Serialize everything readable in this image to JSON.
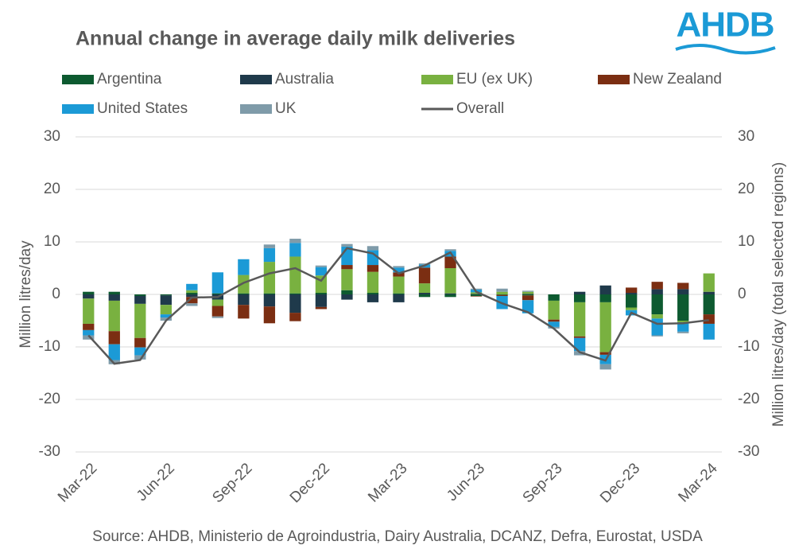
{
  "chart_data": {
    "type": "bar",
    "stacked": true,
    "title": "Annual change in average daily milk deliveries",
    "logo": "AHDB",
    "source": "Source: AHDB, Ministerio de Agroindustria, Dairy Australia, DCANZ, Defra, Eurostat, USDA",
    "y_label": "Million litres/day",
    "y2_label": "Million litres/day (total selected regions)",
    "categories": [
      "Mar-22",
      null,
      null,
      "Jun-22",
      null,
      null,
      "Sep-22",
      null,
      null,
      "Dec-22",
      null,
      null,
      "Mar-23",
      null,
      null,
      "Jun-23",
      null,
      null,
      "Sep-23",
      null,
      null,
      "Dec-23",
      null,
      null,
      "Mar-24"
    ],
    "ylim": [
      -30,
      30
    ],
    "yticks": [
      -30,
      -20,
      -10,
      0,
      10,
      20,
      30
    ],
    "y2lim": [
      -30,
      30
    ],
    "y2ticks": [
      -30,
      -20,
      -10,
      0,
      10,
      20,
      30
    ],
    "grid": true,
    "legend": "top",
    "series": [
      {
        "name": "Argentina",
        "color": "#0d5a30",
        "values": [
          0.5,
          0.5,
          -0.3,
          -0.2,
          0.3,
          0.2,
          0.2,
          0.2,
          0.2,
          0.3,
          0.8,
          0.3,
          0.2,
          -0.5,
          -0.5,
          -0.3,
          -0.1,
          -0.2,
          -1.2,
          -1.5,
          -1.5,
          -2.5,
          -3.8,
          -5.0,
          -3.8
        ]
      },
      {
        "name": "Australia",
        "color": "#1f3a4b",
        "values": [
          -0.8,
          -1.2,
          -1.5,
          -1.8,
          -0.5,
          -1.0,
          -2.0,
          -2.3,
          -3.5,
          -2.4,
          -1.0,
          -1.5,
          -1.5,
          0.3,
          0.2,
          0.1,
          0,
          0.1,
          0,
          0.5,
          1.7,
          0.3,
          1.0,
          1.0,
          0.5
        ]
      },
      {
        "name": "EU (ex UK)",
        "color": "#79b140",
        "values": [
          -4.8,
          -5.8,
          -6.5,
          -1.8,
          0.5,
          -1.2,
          3.5,
          6.0,
          7.0,
          3.3,
          4.0,
          4.0,
          3.2,
          1.8,
          4.8,
          0.3,
          0.5,
          0.4,
          -3.6,
          -6.5,
          -9.5,
          -0.5,
          -0.8,
          -0.3,
          3.5
        ]
      },
      {
        "name": "New Zealand",
        "color": "#7b2e12",
        "values": [
          -1.2,
          -2.5,
          -1.8,
          0,
          -1.2,
          -2.0,
          -2.6,
          -3.2,
          -1.6,
          -0.4,
          0.8,
          1.3,
          0.8,
          3.0,
          2.2,
          -0.1,
          -0.2,
          -0.9,
          -0.4,
          -0.3,
          -0.5,
          1.0,
          1.4,
          1.2,
          -1.8
        ]
      },
      {
        "name": "United States",
        "color": "#1b9ad6",
        "values": [
          -1.0,
          -3.0,
          -1.5,
          -0.6,
          1.2,
          4.0,
          3.0,
          2.6,
          2.6,
          1.6,
          3.5,
          2.8,
          0.9,
          0.6,
          1.1,
          0.5,
          -2.5,
          -2.5,
          -1.0,
          -2.5,
          -1.8,
          -1.0,
          -3.2,
          -1.8,
          -3.0
        ]
      },
      {
        "name": "UK",
        "color": "#7f9ba9",
        "values": [
          -0.8,
          -0.8,
          -0.8,
          -0.6,
          -0.5,
          -0.3,
          0,
          0.7,
          0.8,
          0.3,
          0.5,
          0.8,
          0.3,
          0.2,
          0.3,
          0.2,
          0.6,
          0.2,
          -0.3,
          -0.8,
          -1.0,
          0,
          -0.2,
          -0.3,
          0
        ]
      },
      {
        "name": "Overall",
        "color": "#595959",
        "type": "line",
        "axis": "y2",
        "values": [
          -7.8,
          -13.2,
          -12.5,
          -5.0,
          -0.6,
          -0.5,
          2.2,
          4.0,
          5.0,
          2.6,
          8.8,
          7.8,
          4.0,
          5.5,
          8.0,
          0.5,
          -1.7,
          -3.4,
          -6.5,
          -11.0,
          -12.6,
          -3.5,
          -5.6,
          -5.5,
          -4.9
        ]
      }
    ]
  }
}
